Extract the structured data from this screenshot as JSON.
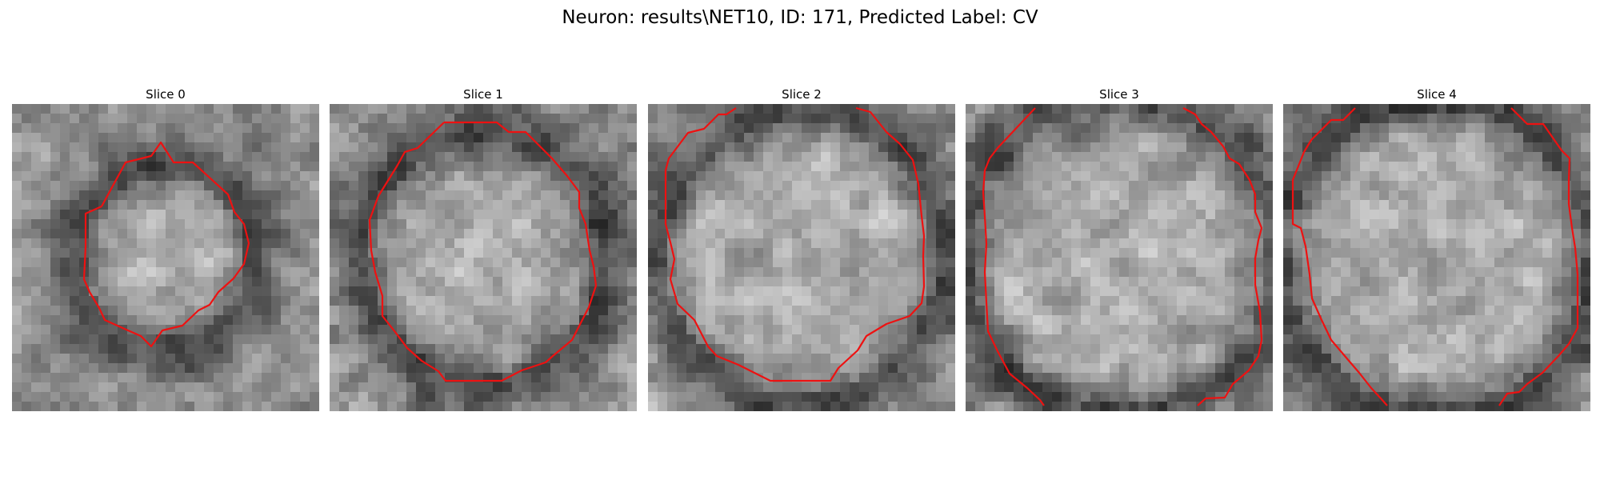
{
  "figure": {
    "title": "Neuron: results\\NET10, ID: 171, Predicted Label: CV",
    "colormap": "gray",
    "contour_color": "#ee1111"
  },
  "slices": [
    {
      "title": "Slice 0",
      "seed": 11,
      "blur": 0.55,
      "shading": "ring-small"
    },
    {
      "title": "Slice 1",
      "seed": 23,
      "blur": 0.45,
      "shading": "ring-large"
    },
    {
      "title": "Slice 2",
      "seed": 37,
      "blur": 0.55,
      "shading": "ring-full"
    },
    {
      "title": "Slice 3",
      "seed": 41,
      "blur": 0.5,
      "shading": "ring-edge"
    },
    {
      "title": "Slice 4",
      "seed": 53,
      "blur": 0.5,
      "shading": "ring-edge"
    }
  ]
}
